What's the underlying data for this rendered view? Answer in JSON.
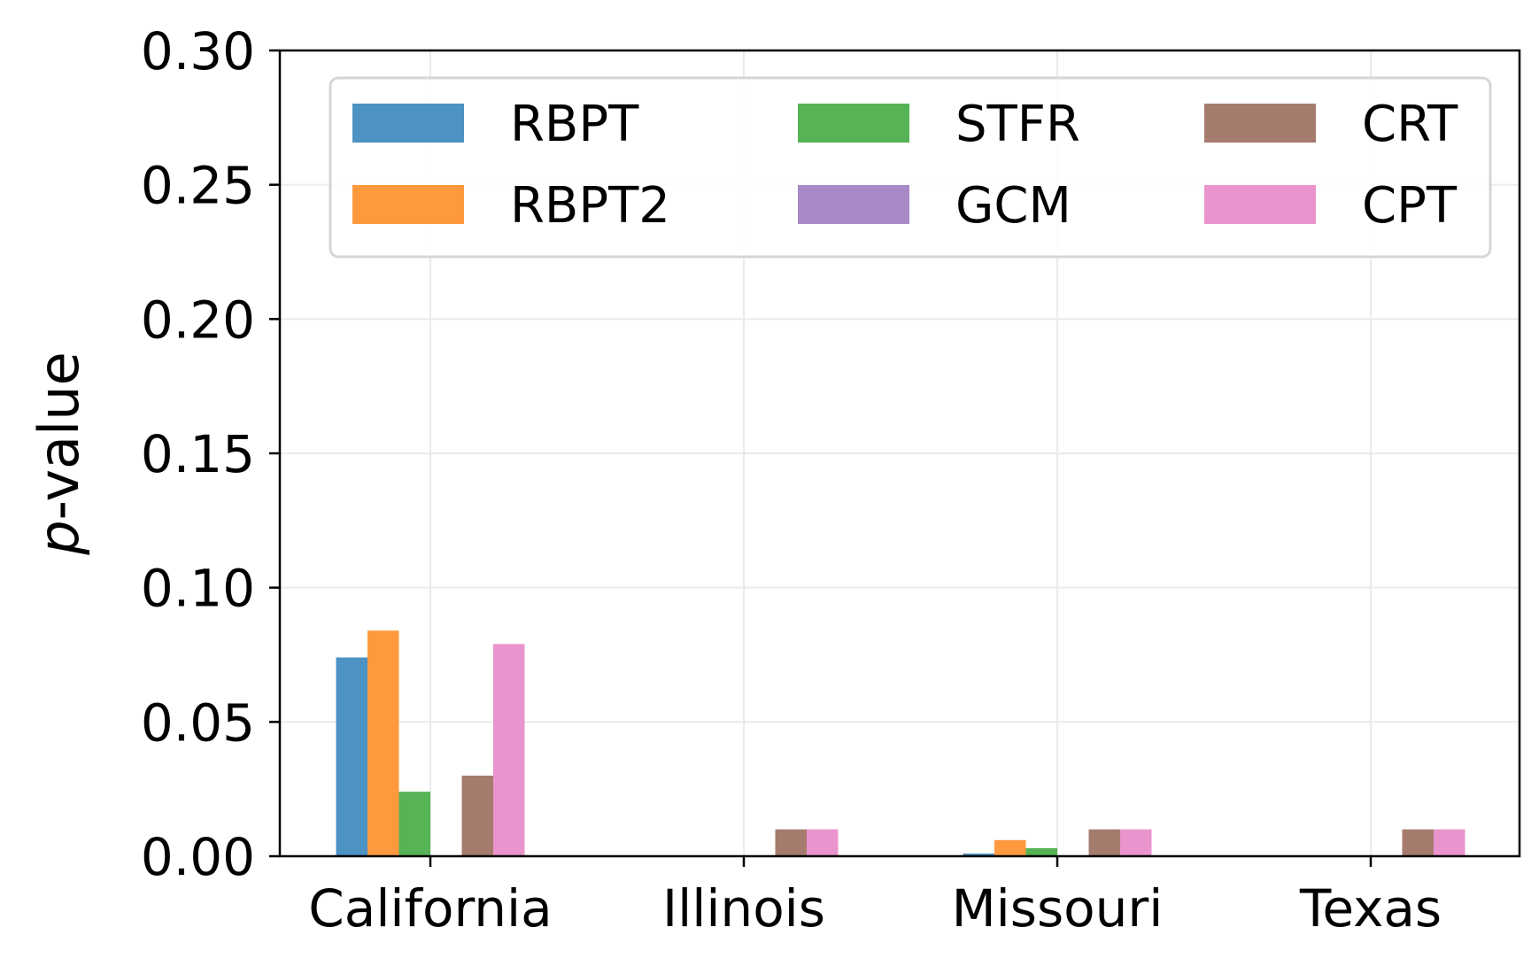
{
  "chart_data": {
    "type": "bar",
    "title": "",
    "xlabel": "",
    "ylabel_italic": "p",
    "ylabel_rest": "-value",
    "categories": [
      "California",
      "Illinois",
      "Missouri",
      "Texas"
    ],
    "ylim": [
      0,
      0.3
    ],
    "yticks": [
      "0.00",
      "0.05",
      "0.10",
      "0.15",
      "0.20",
      "0.25",
      "0.30"
    ],
    "ytick_values": [
      0,
      0.05,
      0.1,
      0.15,
      0.2,
      0.25,
      0.3
    ],
    "grid": true,
    "legend_position": "top",
    "series": [
      {
        "name": "RBPT",
        "color": "#4c92c3",
        "values": [
          0.074,
          0.0,
          0.001,
          0.0
        ]
      },
      {
        "name": "RBPT2",
        "color": "#ff993e",
        "values": [
          0.084,
          0.0,
          0.006,
          0.0
        ]
      },
      {
        "name": "STFR",
        "color": "#56b356",
        "values": [
          0.024,
          0.0,
          0.003,
          0.0
        ]
      },
      {
        "name": "GCM",
        "color": "#a88ac9",
        "values": [
          0.0,
          0.0,
          0.0,
          0.0
        ]
      },
      {
        "name": "CRT",
        "color": "#a57b6e",
        "values": [
          0.03,
          0.01,
          0.01,
          0.01
        ]
      },
      {
        "name": "CPT",
        "color": "#e994cc",
        "values": [
          0.079,
          0.01,
          0.01,
          0.01
        ]
      }
    ]
  }
}
